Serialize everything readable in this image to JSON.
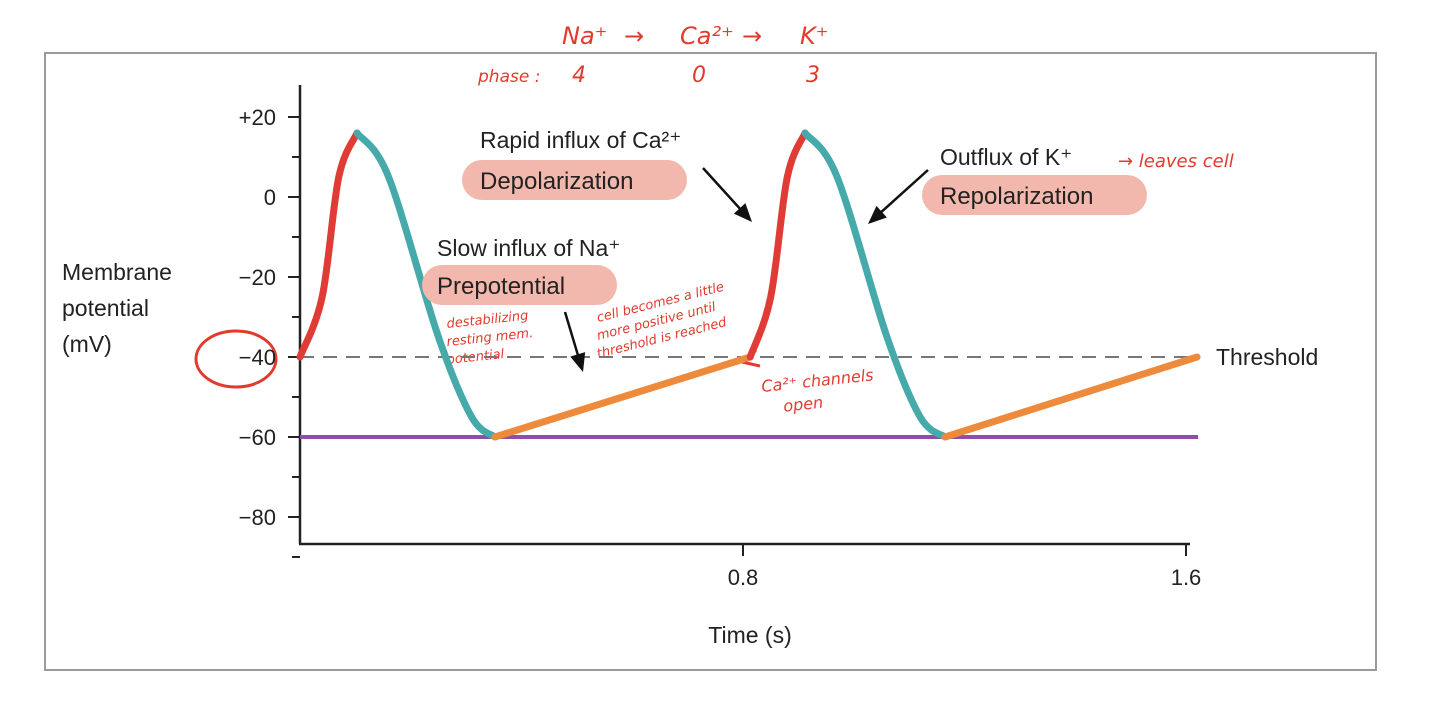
{
  "chart_data": {
    "type": "line",
    "xlabel": "Time (s)",
    "ylabel": [
      "Membrane",
      "potential",
      "(mV)"
    ],
    "xlim": [
      0,
      1.6
    ],
    "ylim": [
      -90,
      30
    ],
    "x_ticks": [
      "0.8",
      "1.6"
    ],
    "x_tick_values": [
      0.8,
      1.6
    ],
    "y_ticks": [
      "+20",
      "0",
      "−20",
      "−40",
      "−60",
      "−80"
    ],
    "y_tick_values": [
      20,
      0,
      -20,
      -40,
      -60,
      -80
    ],
    "grid": false,
    "threshold": {
      "value": -40,
      "label": "Threshold",
      "style": "dashed",
      "color": "#777777"
    },
    "resting_line": {
      "value": -60,
      "color": "#8e4fa6"
    },
    "segments": [
      {
        "phase": "depolarization",
        "color": "#e03c36",
        "points": [
          [
            0,
            -40
          ],
          [
            0.04,
            -25
          ],
          [
            0.07,
            5
          ],
          [
            0.103,
            16
          ]
        ]
      },
      {
        "phase": "repolarization",
        "color": "#45aaa9",
        "points": [
          [
            0.103,
            16
          ],
          [
            0.16,
            5
          ],
          [
            0.25,
            -35
          ],
          [
            0.31,
            -55
          ],
          [
            0.352,
            -60
          ]
        ]
      },
      {
        "phase": "prepotential",
        "color": "#ee8a3c",
        "points": [
          [
            0.352,
            -60
          ],
          [
            0.813,
            -40
          ]
        ]
      },
      {
        "phase": "depolarization",
        "color": "#e03c36",
        "points": [
          [
            0.813,
            -40
          ],
          [
            0.85,
            -25
          ],
          [
            0.88,
            5
          ],
          [
            0.912,
            16
          ]
        ]
      },
      {
        "phase": "repolarization",
        "color": "#45aaa9",
        "points": [
          [
            0.912,
            16
          ],
          [
            0.97,
            5
          ],
          [
            1.06,
            -35
          ],
          [
            1.12,
            -55
          ],
          [
            1.165,
            -60
          ]
        ]
      },
      {
        "phase": "prepotential",
        "color": "#ee8a3c",
        "points": [
          [
            1.165,
            -60
          ],
          [
            1.62,
            -40
          ]
        ]
      }
    ],
    "annotations": [
      {
        "id": "ca",
        "text": "Rapid influx of Ca²⁺",
        "tag": "Depolarization"
      },
      {
        "id": "k",
        "text": "Outflux of K⁺",
        "tag": "Repolarization"
      },
      {
        "id": "na",
        "text": "Slow influx of Na⁺",
        "tag": "Prepotential"
      }
    ],
    "tag_color": "#f2b8ad"
  },
  "handwritten": {
    "ions": [
      "Na⁺",
      "→",
      "Ca²⁺",
      "→",
      "K⁺"
    ],
    "phase_label": "phase :",
    "phases": [
      "4",
      "0",
      "3"
    ],
    "leaves_cell": "→ leaves cell",
    "destab": [
      "destabilizing",
      "resting mem.",
      "potential"
    ],
    "cell_becomes": [
      "cell becomes a little",
      "more positive until",
      "threshold is reached"
    ],
    "ca_channels": [
      "Ca²⁺ channels",
      "open"
    ],
    "color": "#e23a2e"
  }
}
